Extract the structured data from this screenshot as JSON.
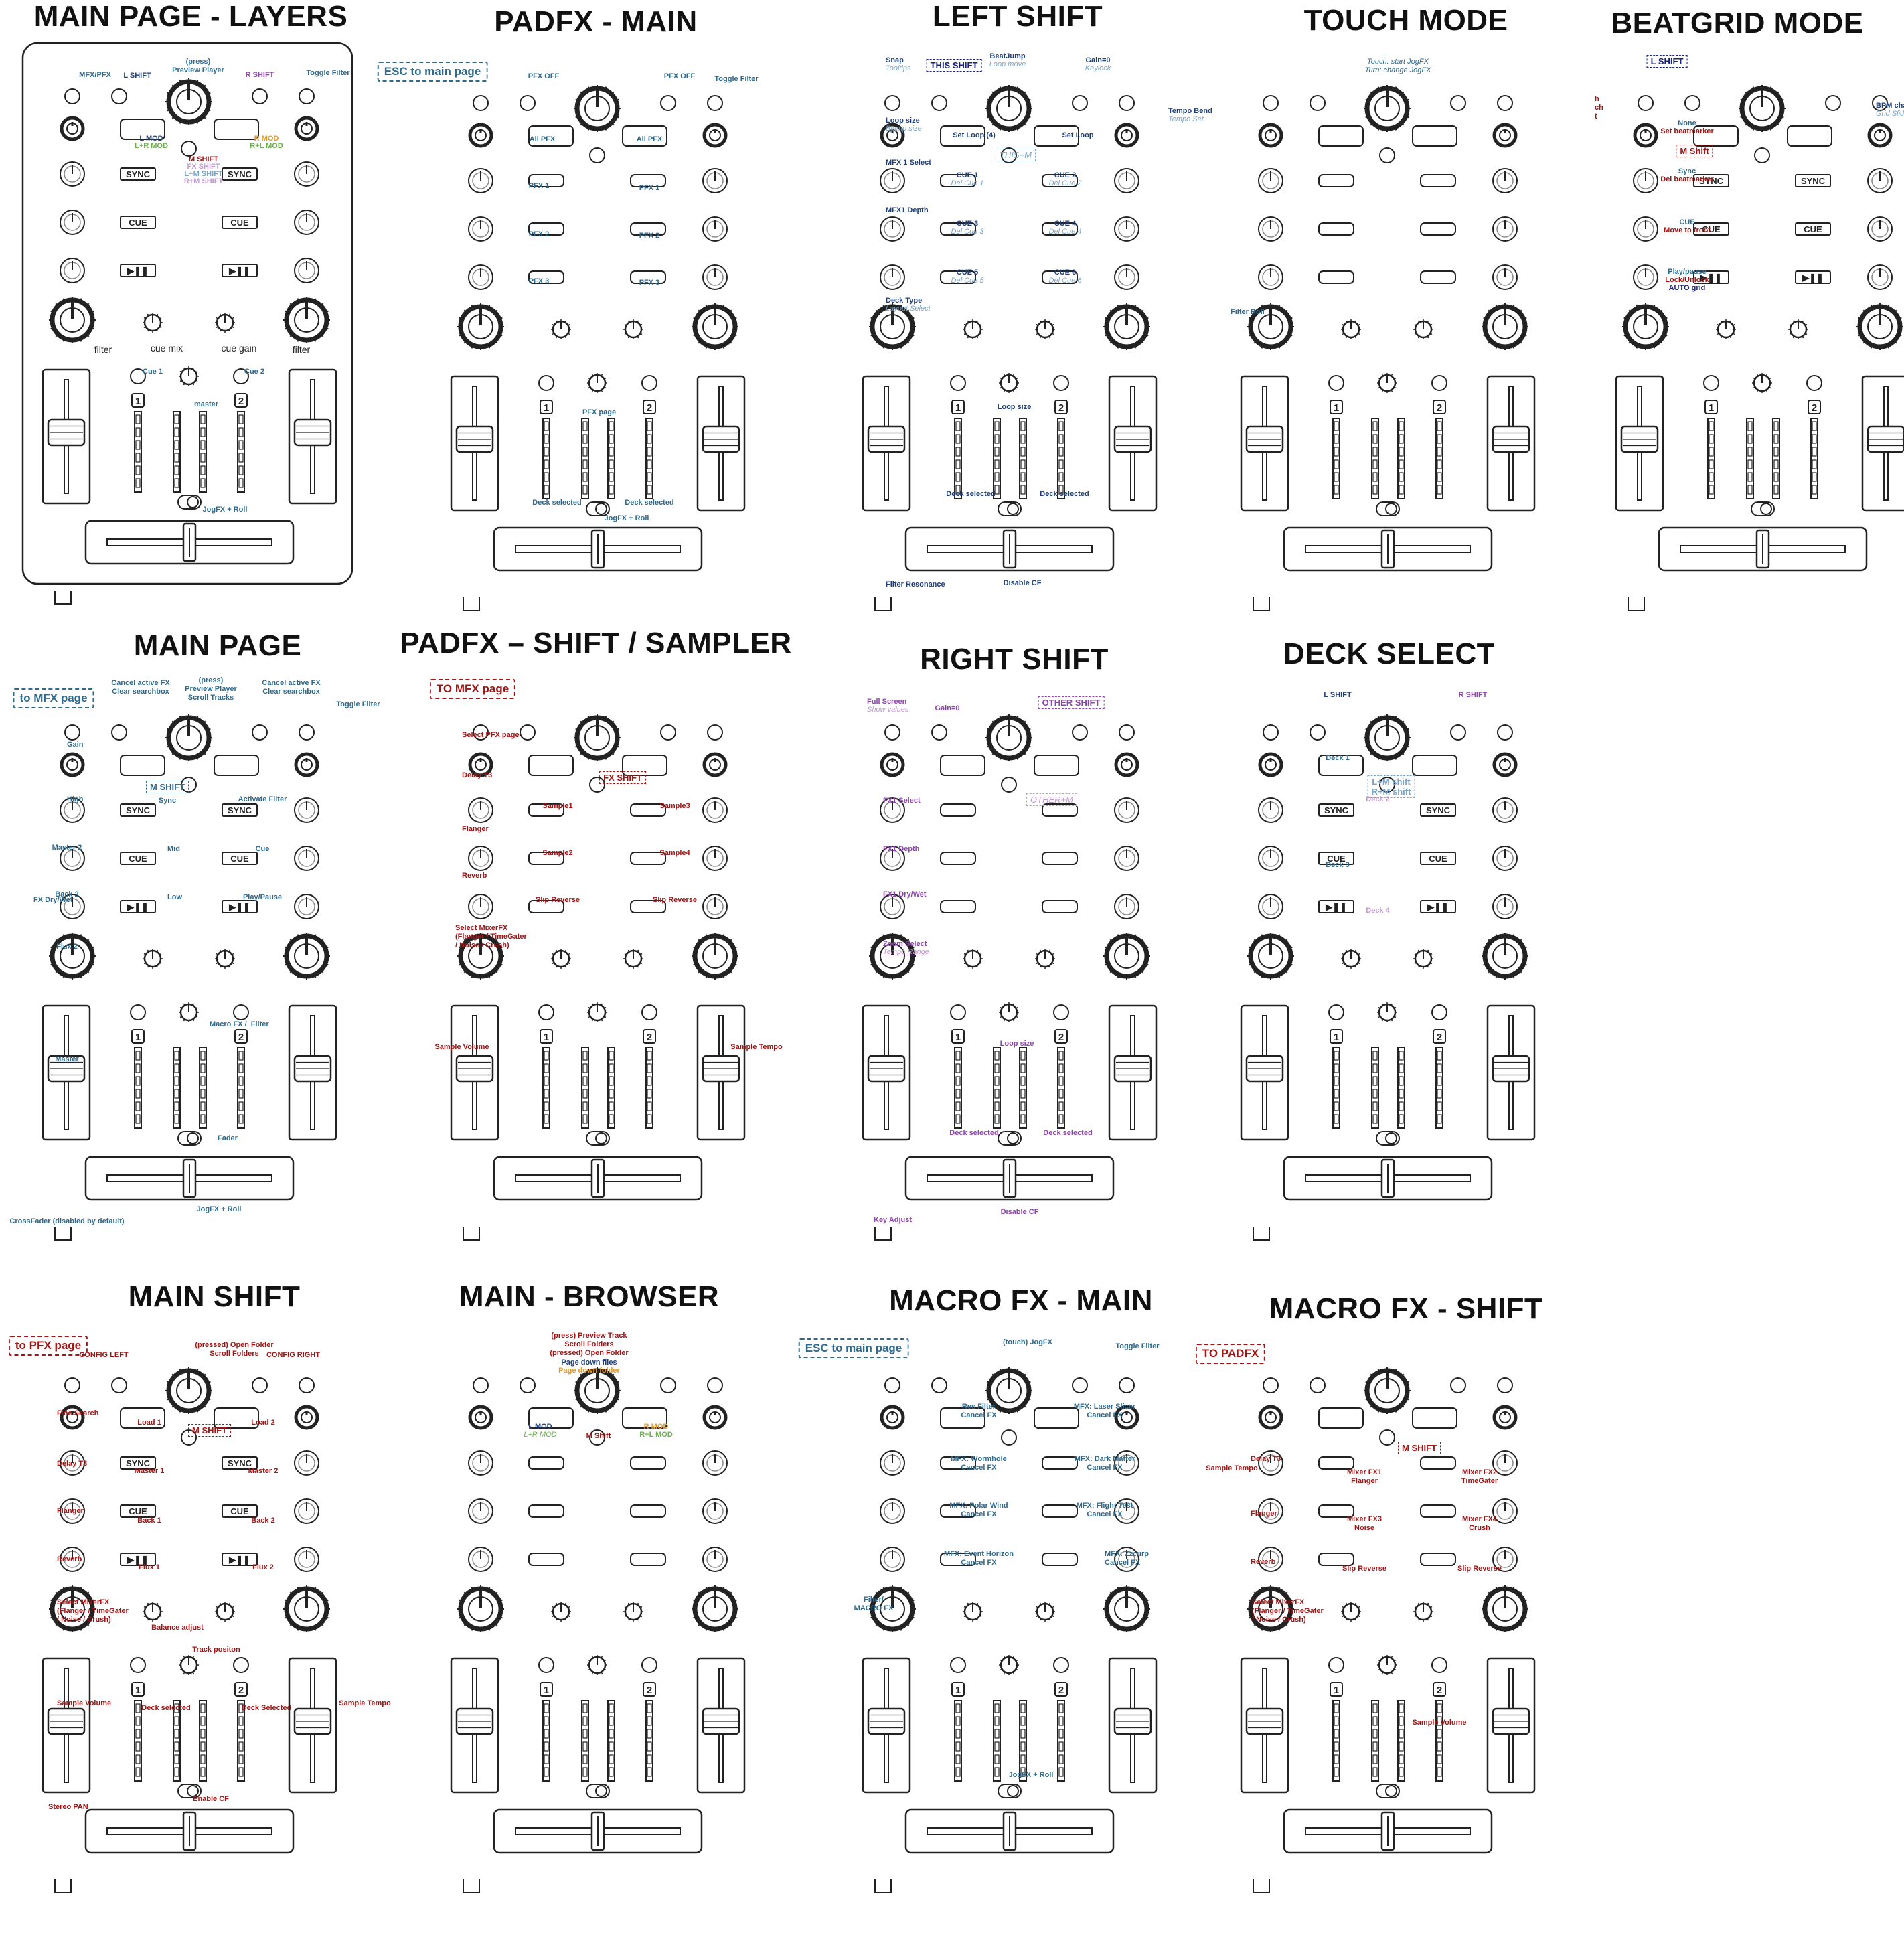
{
  "colors": {
    "dark_blue": "#1f3f7a",
    "steel_blue": "#2e6a8e",
    "light_blue": "#7aa5c8",
    "purple": "#8e44ad",
    "lilac": "#c39bd3",
    "green": "#6ab04c",
    "orange": "#e69a28",
    "red": "#a31515",
    "navy": "#1a237e",
    "gray_box": "#8a8a8a",
    "outline": "#222222"
  },
  "panels": [
    {
      "title": "MAIN PAGE - LAYERS",
      "layers_frame": true,
      "annotations": [
        {
          "text": "MFX/PFX",
          "color": "steel_blue"
        },
        {
          "text": "L SHIFT",
          "color": "dark_blue"
        },
        {
          "text": "(press)\nPreview Player",
          "color": "steel_blue"
        },
        {
          "text": "R SHIFT",
          "color": "purple"
        },
        {
          "text": "Toggle Filter",
          "color": "steel_blue"
        },
        {
          "text": "L MOD",
          "color": "dark_blue"
        },
        {
          "text": "L+R MOD",
          "color": "green"
        },
        {
          "text": "R MOD",
          "color": "orange"
        },
        {
          "text": "R+L MOD",
          "color": "green"
        },
        {
          "text": "M SHIFT",
          "color": "red"
        },
        {
          "text": "FX SHIFT",
          "color": "lilac"
        },
        {
          "text": "L+M SHIFT",
          "color": "light_blue"
        },
        {
          "text": "R+M SHIFT",
          "color": "lilac"
        },
        {
          "text": "filter",
          "color": "outline"
        },
        {
          "text": "cue mix",
          "color": "outline"
        },
        {
          "text": "cue gain",
          "color": "outline"
        },
        {
          "text": "filter",
          "color": "outline"
        },
        {
          "text": "Cue 1",
          "color": "steel_blue"
        },
        {
          "text": "Cue 2",
          "color": "steel_blue"
        },
        {
          "text": "master",
          "color": "steel_blue"
        },
        {
          "text": "JogFX + Roll",
          "color": "steel_blue"
        }
      ]
    },
    {
      "title": "PADFX - MAIN",
      "annotations": [
        {
          "text": "ESC to main page",
          "color": "steel_blue"
        },
        {
          "text": "PFX OFF",
          "color": "steel_blue"
        },
        {
          "text": "PFX OFF",
          "color": "steel_blue"
        },
        {
          "text": "Toggle Filter",
          "color": "steel_blue"
        },
        {
          "text": "All PFX",
          "color": "steel_blue"
        },
        {
          "text": "All PFX",
          "color": "steel_blue"
        },
        {
          "text": "PFX 1",
          "color": "steel_blue"
        },
        {
          "text": "PFX 1",
          "color": "steel_blue"
        },
        {
          "text": "PFX 2",
          "color": "steel_blue"
        },
        {
          "text": "PFX 2",
          "color": "steel_blue"
        },
        {
          "text": "PFX 3",
          "color": "steel_blue"
        },
        {
          "text": "PFX 3",
          "color": "steel_blue"
        },
        {
          "text": "PFX page",
          "color": "steel_blue"
        },
        {
          "text": "Deck selected",
          "color": "steel_blue"
        },
        {
          "text": "Deck selected",
          "color": "steel_blue"
        },
        {
          "text": "JogFX + Roll",
          "color": "steel_blue"
        }
      ]
    },
    {
      "title": "LEFT SHIFT",
      "annotations": [
        {
          "text": "Snap",
          "color": "dark_blue"
        },
        {
          "text": "Tooltips",
          "color": "light_blue"
        },
        {
          "text": "THIS SHIFT",
          "color": "navy"
        },
        {
          "text": "BeatJump",
          "color": "dark_blue"
        },
        {
          "text": "Loop move",
          "color": "light_blue"
        },
        {
          "text": "Gain=0",
          "color": "dark_blue"
        },
        {
          "text": "Keylock",
          "color": "light_blue"
        },
        {
          "text": "Loop size",
          "color": "dark_blue"
        },
        {
          "text": "Bjump size",
          "color": "light_blue"
        },
        {
          "text": "Tempo Bend",
          "color": "dark_blue"
        },
        {
          "text": "Tempo Set",
          "color": "light_blue"
        },
        {
          "text": "Set Loop (4)",
          "color": "dark_blue"
        },
        {
          "text": "Set Loop",
          "color": "dark_blue"
        },
        {
          "text": "THIS+M",
          "color": "light_blue"
        },
        {
          "text": "MFX 1 Select",
          "color": "dark_blue"
        },
        {
          "text": "CUE 1",
          "color": "dark_blue"
        },
        {
          "text": "Del Cue 1",
          "color": "light_blue"
        },
        {
          "text": "CUE 2",
          "color": "dark_blue"
        },
        {
          "text": "Del Cue 2",
          "color": "light_blue"
        },
        {
          "text": "MFX1 Depth",
          "color": "dark_blue"
        },
        {
          "text": "CUE 3",
          "color": "dark_blue"
        },
        {
          "text": "Del Cue 3",
          "color": "light_blue"
        },
        {
          "text": "CUE 4",
          "color": "dark_blue"
        },
        {
          "text": "Del Cue 4",
          "color": "light_blue"
        },
        {
          "text": "CUE 5",
          "color": "dark_blue"
        },
        {
          "text": "Del Cue 5",
          "color": "light_blue"
        },
        {
          "text": "CUE 6",
          "color": "dark_blue"
        },
        {
          "text": "Del Cue 6",
          "color": "light_blue"
        },
        {
          "text": "Deck Type",
          "color": "dark_blue"
        },
        {
          "text": "Layout Select",
          "color": "light_blue"
        },
        {
          "text": "Loop size",
          "color": "dark_blue"
        },
        {
          "text": "Deck selected",
          "color": "dark_blue"
        },
        {
          "text": "Deck selected",
          "color": "dark_blue"
        },
        {
          "text": "Filter Resonance",
          "color": "dark_blue"
        },
        {
          "text": "Disable CF",
          "color": "dark_blue"
        }
      ]
    },
    {
      "title": "TOUCH MODE",
      "annotations": [
        {
          "text": "Touch: start JogFX\nTurn: change JogFX",
          "color": "steel_blue"
        },
        {
          "text": "Filter Roll",
          "color": "steel_blue"
        }
      ]
    },
    {
      "title": "BEATGRID MODE",
      "annotations": [
        {
          "text": "L SHIFT",
          "color": "navy"
        },
        {
          "text": "h\nch\nt",
          "color": "red"
        },
        {
          "text": "BPM change",
          "color": "dark_blue"
        },
        {
          "text": "Grid Slide",
          "color": "light_blue"
        },
        {
          "text": "None",
          "color": "steel_blue"
        },
        {
          "text": "Set beatmarker",
          "color": "red"
        },
        {
          "text": "M Shift",
          "color": "red"
        },
        {
          "text": "Sync",
          "color": "steel_blue"
        },
        {
          "text": "Del beatmarker",
          "color": "red"
        },
        {
          "text": "CUE",
          "color": "steel_blue"
        },
        {
          "text": "Move to front",
          "color": "red"
        },
        {
          "text": "Play/pause",
          "color": "steel_blue"
        },
        {
          "text": "Lock/Unlock",
          "color": "red"
        },
        {
          "text": "AUTO grid",
          "color": "navy"
        }
      ]
    },
    {
      "title": "MAIN PAGE",
      "annotations": [
        {
          "text": "to MFX page",
          "color": "steel_blue"
        },
        {
          "text": "Cancel active FX\nClear searchbox",
          "color": "steel_blue"
        },
        {
          "text": "(press)\nPreview Player\nScroll Tracks",
          "color": "steel_blue"
        },
        {
          "text": "Cancel active FX\nClear searchbox",
          "color": "steel_blue"
        },
        {
          "text": "Toggle Filter",
          "color": "steel_blue"
        },
        {
          "text": "Gain",
          "color": "steel_blue"
        },
        {
          "text": "M SHIFT",
          "color": "steel_blue"
        },
        {
          "text": "High",
          "color": "steel_blue"
        },
        {
          "text": "Sync",
          "color": "steel_blue"
        },
        {
          "text": "Activate Filter",
          "color": "steel_blue"
        },
        {
          "text": "Master 2",
          "color": "steel_blue"
        },
        {
          "text": "Mid",
          "color": "steel_blue"
        },
        {
          "text": "Cue",
          "color": "steel_blue"
        },
        {
          "text": "Back 2",
          "color": "steel_blue"
        },
        {
          "text": "Low",
          "color": "steel_blue"
        },
        {
          "text": "Play/Pause",
          "color": "steel_blue"
        },
        {
          "text": "Flux 2",
          "color": "steel_blue"
        },
        {
          "text": "Macro FX /  Filter",
          "color": "steel_blue"
        },
        {
          "text": "Master",
          "color": "steel_blue"
        },
        {
          "text": "Fader",
          "color": "steel_blue"
        },
        {
          "text": "JogFX + Roll",
          "color": "steel_blue"
        },
        {
          "text": "CrossFader (disabled by default)",
          "color": "steel_blue"
        },
        {
          "text": "FX Dry/Wet",
          "color": "steel_blue"
        }
      ]
    },
    {
      "title": "PADFX – SHIFT / SAMPLER",
      "annotations": [
        {
          "text": "TO MFX page",
          "color": "red"
        },
        {
          "text": "Select PFX page",
          "color": "red"
        },
        {
          "text": "Delay T3",
          "color": "red"
        },
        {
          "text": "FX SHIFT",
          "color": "red"
        },
        {
          "text": "Sample1",
          "color": "red"
        },
        {
          "text": "Sample3",
          "color": "red"
        },
        {
          "text": "Flanger",
          "color": "red"
        },
        {
          "text": "Sample2",
          "color": "red"
        },
        {
          "text": "Sample4",
          "color": "red"
        },
        {
          "text": "Reverb",
          "color": "red"
        },
        {
          "text": "Slip Reverse",
          "color": "red"
        },
        {
          "text": "Slip Reverse",
          "color": "red"
        },
        {
          "text": "Select MixerFX\n(Flanger / TimeGater\n/ Noise / Crush)",
          "color": "red"
        },
        {
          "text": "Sample Volume",
          "color": "red"
        },
        {
          "text": "Sample Tempo",
          "color": "red"
        }
      ]
    },
    {
      "title": "RIGHT SHIFT",
      "annotations": [
        {
          "text": "Full Screen",
          "color": "purple"
        },
        {
          "text": "Show values",
          "color": "lilac"
        },
        {
          "text": "Gain=0",
          "color": "purple"
        },
        {
          "text": "OTHER SHIFT",
          "color": "purple"
        },
        {
          "text": "OTHER+M",
          "color": "lilac"
        },
        {
          "text": "FX1 Select",
          "color": "purple"
        },
        {
          "text": "FX1 Depth",
          "color": "purple"
        },
        {
          "text": "FX1 Dry/Wet",
          "color": "purple"
        },
        {
          "text": "Zoom Select",
          "color": "purple"
        },
        {
          "text": "Tempo Range",
          "color": "lilac"
        },
        {
          "text": "Loop size",
          "color": "purple"
        },
        {
          "text": "Deck selected",
          "color": "purple"
        },
        {
          "text": "Deck selected",
          "color": "purple"
        },
        {
          "text": "Key Adjust",
          "color": "purple"
        },
        {
          "text": "Disable CF",
          "color": "purple"
        }
      ]
    },
    {
      "title": "DECK SELECT",
      "annotations": [
        {
          "text": "L SHIFT",
          "color": "dark_blue"
        },
        {
          "text": "R SHIFT",
          "color": "purple"
        },
        {
          "text": "Deck 1",
          "color": "steel_blue"
        },
        {
          "text": "L+M shift\nR+M shift",
          "color": "light_blue"
        },
        {
          "text": "Deck 2",
          "color": "lilac"
        },
        {
          "text": "Deck 3",
          "color": "steel_blue"
        },
        {
          "text": "Deck 4",
          "color": "lilac"
        }
      ]
    },
    {
      "title": "MAIN SHIFT",
      "annotations": [
        {
          "text": "to PFX page",
          "color": "red"
        },
        {
          "text": "CONFIG LEFT",
          "color": "red"
        },
        {
          "text": "(pressed) Open Folder\nScroll Folders",
          "color": "red"
        },
        {
          "text": "CONFIG RIGHT",
          "color": "red"
        },
        {
          "text": "Fine Search",
          "color": "red"
        },
        {
          "text": "Load 1",
          "color": "red"
        },
        {
          "text": "Load 2",
          "color": "red"
        },
        {
          "text": "M SHIFT",
          "color": "red"
        },
        {
          "text": "Delay T3",
          "color": "red"
        },
        {
          "text": "Master 1",
          "color": "red"
        },
        {
          "text": "Master 2",
          "color": "red"
        },
        {
          "text": "Flanger",
          "color": "red"
        },
        {
          "text": "Back 1",
          "color": "red"
        },
        {
          "text": "Back 2",
          "color": "red"
        },
        {
          "text": "Reverb",
          "color": "red"
        },
        {
          "text": "Flux 1",
          "color": "red"
        },
        {
          "text": "Flux 2",
          "color": "red"
        },
        {
          "text": "Select MixerFX\n(Flanger / TimeGater\n/ Noise / Crush)",
          "color": "red"
        },
        {
          "text": "Balance adjust",
          "color": "red"
        },
        {
          "text": "Track positon",
          "color": "red"
        },
        {
          "text": "Sample Volume",
          "color": "red"
        },
        {
          "text": "Sample Tempo",
          "color": "red"
        },
        {
          "text": "Deck selected",
          "color": "red"
        },
        {
          "text": "Deck Selected",
          "color": "red"
        },
        {
          "text": "Stereo PAN",
          "color": "red"
        },
        {
          "text": "Enable CF",
          "color": "red"
        }
      ]
    },
    {
      "title": "MAIN - BROWSER",
      "annotations": [
        {
          "text": "(press) Preview Track\nScroll Folders\n(pressed) Open Folder",
          "color": "red"
        },
        {
          "text": "Page down files",
          "color": "dark_blue"
        },
        {
          "text": "Page down folder",
          "color": "orange"
        },
        {
          "text": "L MOD",
          "color": "dark_blue"
        },
        {
          "text": "L+R MOD",
          "color": "green"
        },
        {
          "text": "M Shift",
          "color": "red"
        },
        {
          "text": "R MOD",
          "color": "orange"
        },
        {
          "text": "R+L MOD",
          "color": "green"
        }
      ]
    },
    {
      "title": "MACRO FX - MAIN",
      "annotations": [
        {
          "text": "ESC to main page",
          "color": "steel_blue"
        },
        {
          "text": "(touch) JogFX",
          "color": "steel_blue"
        },
        {
          "text": "Toggle Filter",
          "color": "steel_blue"
        },
        {
          "text": "Res Filter\nCancel FX",
          "color": "steel_blue"
        },
        {
          "text": "MFX: Laser Slicer\nCancel FX",
          "color": "steel_blue"
        },
        {
          "text": "MFX: Wormhole\nCancel FX",
          "color": "steel_blue"
        },
        {
          "text": "MFX: Dark Matter\nCancel FX",
          "color": "steel_blue"
        },
        {
          "text": "MFX: Polar Wind\nCancel FX",
          "color": "steel_blue"
        },
        {
          "text": "MFX: Flight Test\nCancel FX",
          "color": "steel_blue"
        },
        {
          "text": "MFX: Event Horizon\nCancel FX",
          "color": "steel_blue"
        },
        {
          "text": "MFX: Zzcurp\nCancel FX",
          "color": "steel_blue"
        },
        {
          "text": "Filter/\nMACRO FX",
          "color": "steel_blue"
        },
        {
          "text": "JogFX + Roll",
          "color": "steel_blue"
        }
      ]
    },
    {
      "title": "MACRO FX - SHIFT",
      "annotations": [
        {
          "text": "TO PADFX",
          "color": "red"
        },
        {
          "text": "Delay T3",
          "color": "red"
        },
        {
          "text": "M SHIFT",
          "color": "red"
        },
        {
          "text": "Mixer FX1\nFlanger",
          "color": "red"
        },
        {
          "text": "Mixer FX2\nTimeGater",
          "color": "red"
        },
        {
          "text": "Flanger",
          "color": "red"
        },
        {
          "text": "Mixer FX3\nNoise",
          "color": "red"
        },
        {
          "text": "Mixer FX4\nCrush",
          "color": "red"
        },
        {
          "text": "Reverb",
          "color": "red"
        },
        {
          "text": "Slip Reverse",
          "color": "red"
        },
        {
          "text": "Slip Reverse",
          "color": "red"
        },
        {
          "text": "Select MixerFX\n(Flanger / TimeGater\n/ Noise / Crush)",
          "color": "red"
        },
        {
          "text": "Sample Volume",
          "color": "red"
        },
        {
          "text": "Sample Tempo",
          "color": "red"
        }
      ]
    }
  ],
  "controller": {
    "buttons": {
      "sync": "SYNC",
      "cue": "CUE",
      "play": "▶❚❚"
    },
    "deck_numbers": [
      "1",
      "2"
    ],
    "pad_captions": [
      "filter",
      "cue mix",
      "cue gain",
      "filter"
    ]
  }
}
